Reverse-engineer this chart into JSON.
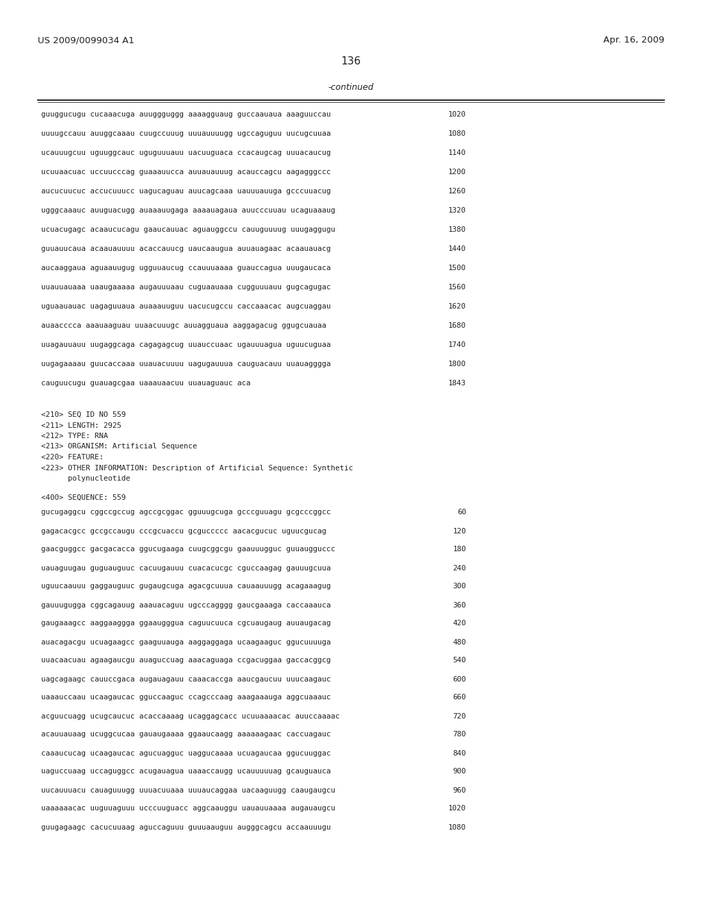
{
  "header_left": "US 2009/0099034 A1",
  "header_right": "Apr. 16, 2009",
  "page_number": "136",
  "continued_label": "-continued",
  "background_color": "#ffffff",
  "text_color": "#231f20",
  "sequence_lines_top": [
    {
      "text": "guuggucugu cucaaacuga auuggguggg aaaagguaug guccaauaua aaaguuccau",
      "num": "1020"
    },
    {
      "text": "uuuugccauu auuggcaaau cuugccuuug uuuauuuugg ugccaguguu uucugcuuaa",
      "num": "1080"
    },
    {
      "text": "ucauuugcuu uguuggcauc uguguuuauu uacuuguaca ccacaugcag uuuacaucug",
      "num": "1140"
    },
    {
      "text": "ucuuaacuac uccuucccag guaaauucca auuauauuug acauccagcu aagagggccc",
      "num": "1200"
    },
    {
      "text": "aucucuucuc accucuuucc uagucaguau auucagcaaa uauuuauuga gcccuuacug",
      "num": "1260"
    },
    {
      "text": "ugggcaaauc auuguacugg auaaauugaga aaaauagaua auucccuuau ucaguaaaug",
      "num": "1320"
    },
    {
      "text": "ucuacugagc acaaucucagu gaaucauuac aguauggccu cauuguuuug uuugaggugu",
      "num": "1380"
    },
    {
      "text": "guuauucaua acaauauuuu acaccauucg uaucaaugua auuauagaac acaauauacg",
      "num": "1440"
    },
    {
      "text": "aucaaggaua aguaauugug ugguuaucug ccauuuaaaa guauccagua uuugaucaca",
      "num": "1500"
    },
    {
      "text": "uuauuauaaa uaaugaaaaa augauuuaau cuguaauaaa cugguuuauu gugcagugac",
      "num": "1560"
    },
    {
      "text": "uguaauauac uagaguuaua auaaauuguu uacucugccu caccaaacac augcuaggau",
      "num": "1620"
    },
    {
      "text": "auaacccca aaauaaguau uuaacuuugc auuagguaua aaggagacug ggugcuauaa",
      "num": "1680"
    },
    {
      "text": "uuagauuauu uugaggcaga cagagagcug uuauccuaac ugauuuagua uguucuguaa",
      "num": "1740"
    },
    {
      "text": "uugagaaaau guucaccaaa uuauacuuuu uagugauuua cauguacauu uuauagggga",
      "num": "1800"
    },
    {
      "text": "cauguucugu guauagcgaa uaaauaacuu uuauaguauc aca",
      "num": "1843"
    }
  ],
  "metadata_lines": [
    "<210> SEQ ID NO 559",
    "<211> LENGTH: 2925",
    "<212> TYPE: RNA",
    "<213> ORGANISM: Artificial Sequence",
    "<220> FEATURE:",
    "<223> OTHER INFORMATION: Description of Artificial Sequence: Synthetic",
    "      polynucleotide"
  ],
  "sequence_label": "<400> SEQUENCE: 559",
  "sequence_lines_bottom": [
    {
      "text": "gucugaggcu cggccgccug agccgcggac gguuugcuga gcccguuagu gcgcccggcc",
      "num": "60"
    },
    {
      "text": "gagacacgcc gccgccaugu cccgcuaccu gcguccccc aacacgucuc uguucgucag",
      "num": "120"
    },
    {
      "text": "gaacguggcc gacgacacca ggucugaaga cuugcggcgu gaauuugguc guuaugguccc",
      "num": "180"
    },
    {
      "text": "uauaguugau guguauguuc cacuugauuu cuacacucgc cguccaagag gauuugcuua",
      "num": "240"
    },
    {
      "text": "uguucaauuu gaggauguuc gugaugcuga agacgcuuua cauaauuugg acagaaagug",
      "num": "300"
    },
    {
      "text": "gauuugugga cggcagauug aaauacaguu ugcccagggg gaucgaaaga caccaaauca",
      "num": "360"
    },
    {
      "text": "gaugaaagcc aaggaaggga ggaaugggua caguucuuca cgcuaugaug auuaugacag",
      "num": "420"
    },
    {
      "text": "auacagacgu ucuagaagcc gaaguuauga aaggaggaga ucaagaaguc ggucuuuuga",
      "num": "480"
    },
    {
      "text": "uuacaacuau agaagaucgu auaguccuag aaacaguaga ccgacuggaa gaccacggcg",
      "num": "540"
    },
    {
      "text": "uagcagaagc cauuccgaca augauagauu caaacaccga aaucgaucuu uuucaagauc",
      "num": "600"
    },
    {
      "text": "uaaauccaau ucaagaucac gguccaaguc ccagcccaag aaagaaauga aggcuaaauc",
      "num": "660"
    },
    {
      "text": "acguucuagg ucugcaucuc acaccaaaag ucaggagcacc ucuuaaaacac auuccaaaac",
      "num": "720"
    },
    {
      "text": "acauuauaag ucuggcucaa gauaugaaaa ggaaucaagg aaaaaagaac caccuagauc",
      "num": "780"
    },
    {
      "text": "caaaucucag ucaagaucac agucuagguc uaggucaaaa ucuagaucaa ggucuuggac",
      "num": "840"
    },
    {
      "text": "uaguccuaag uccaguggcc acugauagua uaaaccaugg ucauuuuuag gcauguauca",
      "num": "900"
    },
    {
      "text": "uucauuuacu cauaguuugg uuuacuuaaa uuuaucaggaa uacaaguugg caaugaugcu",
      "num": "960"
    },
    {
      "text": "uaaaaaacac uuguuaguuu ucccuuguacc aggcaauggu uauauuaaaa augauaugcu",
      "num": "1020"
    },
    {
      "text": "guugagaagc cacucuuaag aguccaguuu guuuaauguu augggcagcu accaauuugu",
      "num": "1080"
    }
  ]
}
